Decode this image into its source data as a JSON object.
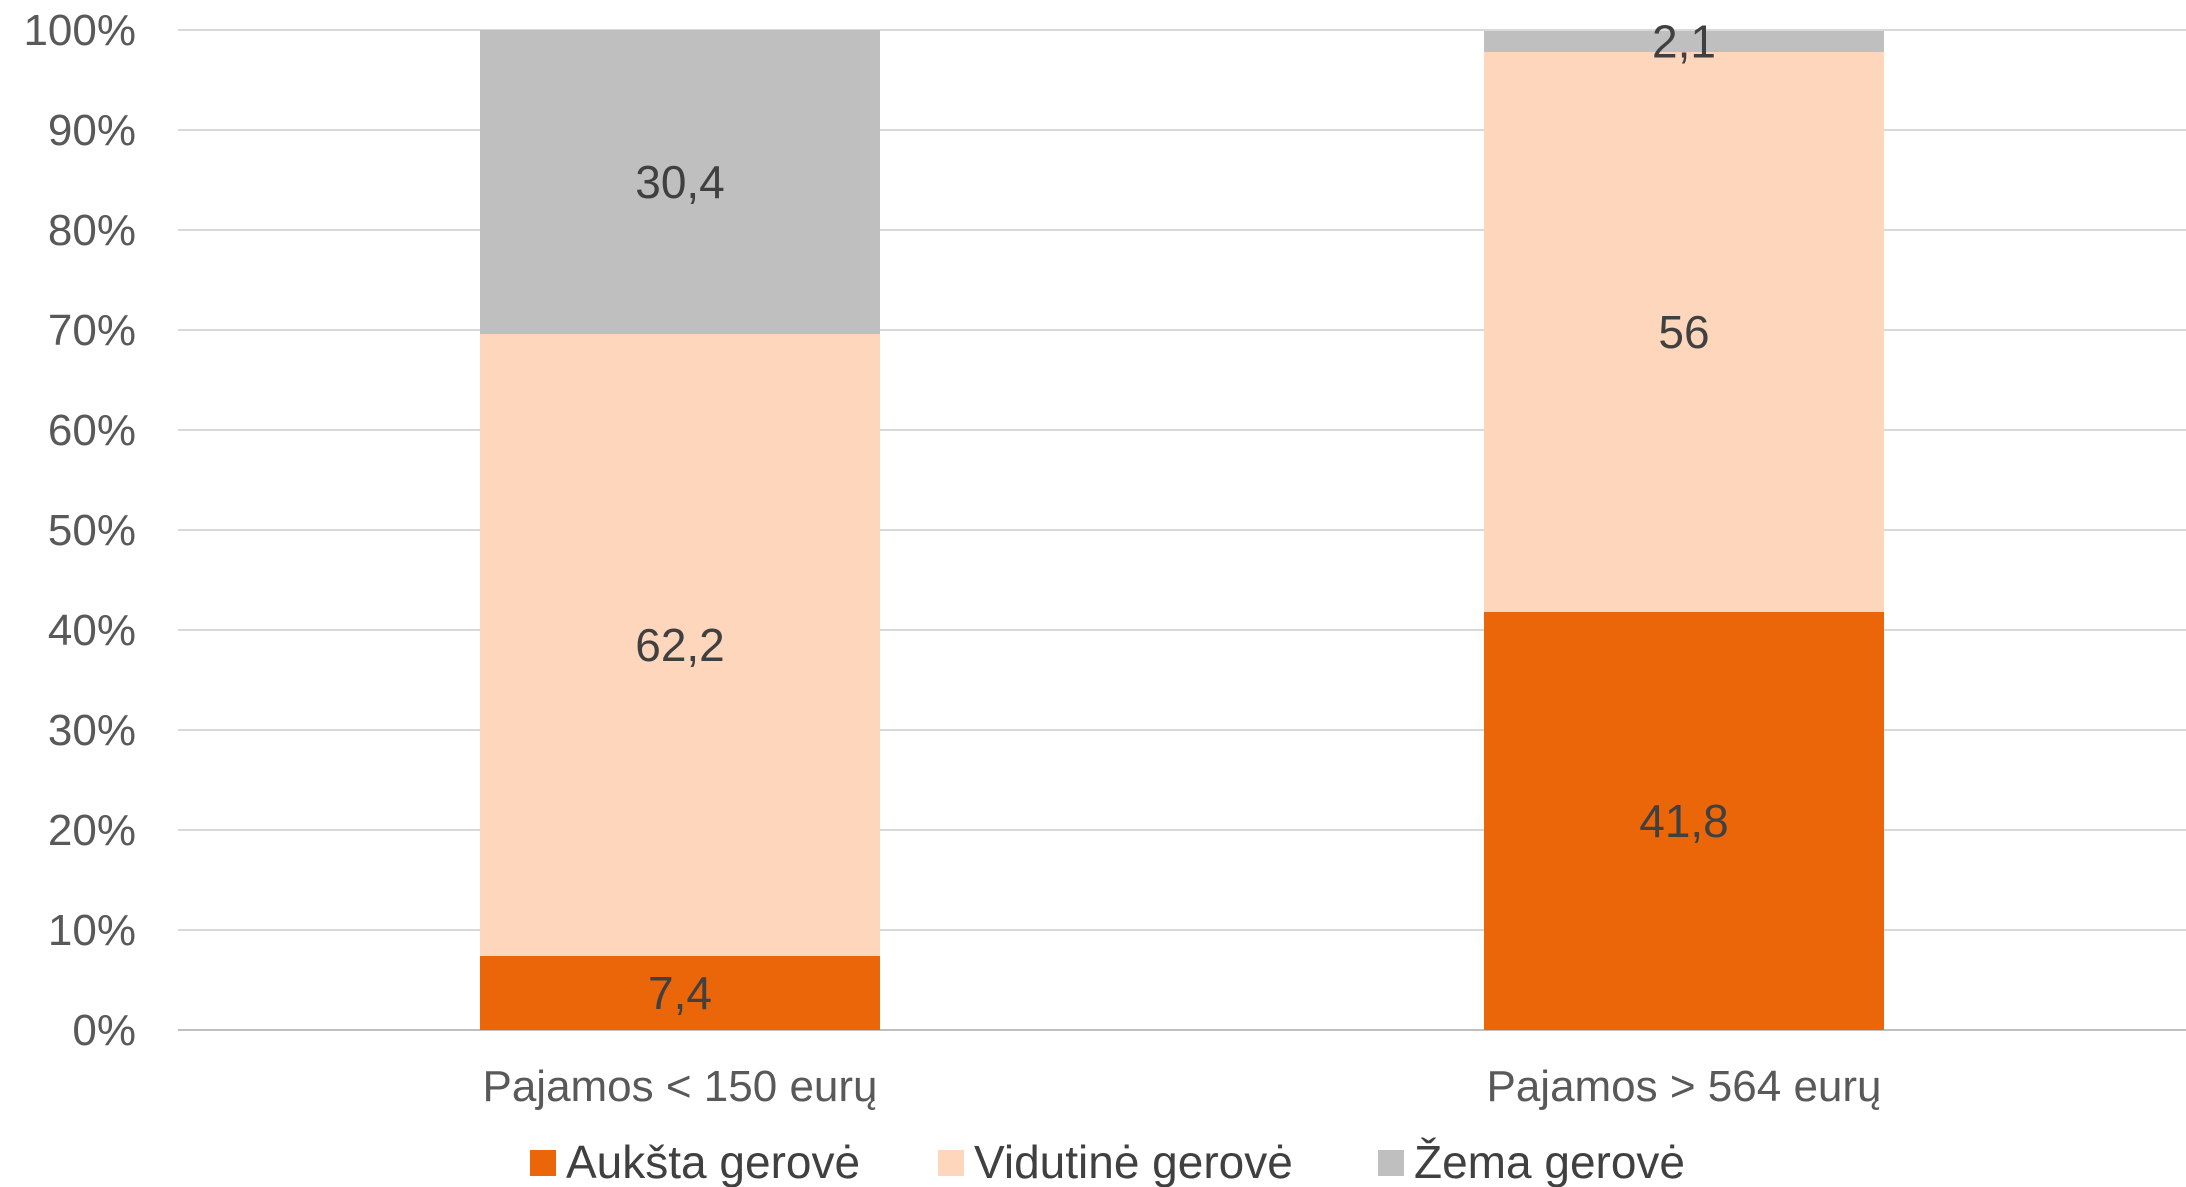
{
  "chart_data": {
    "type": "bar",
    "stacked": true,
    "categories": [
      "Pajamos < 150 eurų",
      "Pajamos > 564 eurų"
    ],
    "series": [
      {
        "name": "Aukšta gerovė",
        "color": "#EB6608",
        "values": [
          7.4,
          41.8
        ],
        "labels": [
          "7,4",
          "41,8"
        ]
      },
      {
        "name": "Vidutinė gerovė",
        "color": "#FDD6BC",
        "values": [
          62.2,
          56
        ],
        "labels": [
          "62,2",
          "56"
        ]
      },
      {
        "name": "Žema gerovė",
        "color": "#BFBFBF",
        "values": [
          30.4,
          2.1
        ],
        "labels": [
          "30,4",
          "2,1"
        ]
      }
    ],
    "ylim": [
      0,
      100
    ],
    "yticks": [
      "0%",
      "10%",
      "20%",
      "30%",
      "40%",
      "50%",
      "60%",
      "70%",
      "80%",
      "90%",
      "100%"
    ],
    "grid": true,
    "legend_position": "bottom"
  }
}
